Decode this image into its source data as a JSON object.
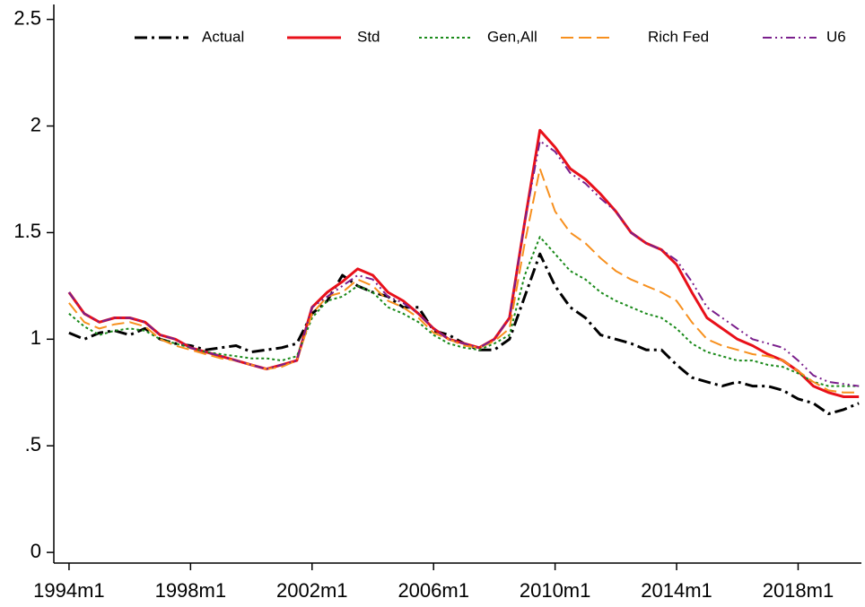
{
  "chart_data": {
    "type": "line",
    "x": [
      "1994m1",
      "1994m7",
      "1995m1",
      "1995m7",
      "1996m1",
      "1996m7",
      "1997m1",
      "1997m7",
      "1998m1",
      "1998m7",
      "1999m1",
      "1999m7",
      "2000m1",
      "2000m7",
      "2001m1",
      "2001m7",
      "2002m1",
      "2002m7",
      "2003m1",
      "2003m7",
      "2004m1",
      "2004m7",
      "2005m1",
      "2005m7",
      "2006m1",
      "2006m7",
      "2007m1",
      "2007m7",
      "2008m1",
      "2008m7",
      "2009m1",
      "2009m7",
      "2010m1",
      "2010m7",
      "2011m1",
      "2011m7",
      "2012m1",
      "2012m7",
      "2013m1",
      "2013m7",
      "2014m1",
      "2014m7",
      "2015m1",
      "2015m7",
      "2016m1",
      "2016m7",
      "2017m1",
      "2017m7",
      "2018m1",
      "2018m7",
      "2019m1",
      "2019m7",
      "2020m1"
    ],
    "series": [
      {
        "name": "Actual",
        "color": "#000000",
        "dash": "14 5 3 5",
        "width": 3,
        "values": [
          1.03,
          1.0,
          1.03,
          1.04,
          1.02,
          1.05,
          1.0,
          0.98,
          0.97,
          0.95,
          0.96,
          0.97,
          0.94,
          0.95,
          0.96,
          0.98,
          1.12,
          1.18,
          1.3,
          1.25,
          1.22,
          1.2,
          1.15,
          1.15,
          1.04,
          1.02,
          0.98,
          0.95,
          0.95,
          1.0,
          1.2,
          1.4,
          1.25,
          1.15,
          1.1,
          1.02,
          1.0,
          0.98,
          0.95,
          0.95,
          0.88,
          0.82,
          0.8,
          0.78,
          0.8,
          0.78,
          0.78,
          0.76,
          0.72,
          0.7,
          0.65,
          0.67,
          0.7
        ]
      },
      {
        "name": "Std",
        "color": "#e8101a",
        "dash": "none",
        "width": 3,
        "values": [
          1.22,
          1.12,
          1.08,
          1.1,
          1.1,
          1.08,
          1.02,
          1.0,
          0.96,
          0.94,
          0.92,
          0.9,
          0.88,
          0.86,
          0.88,
          0.9,
          1.15,
          1.22,
          1.27,
          1.33,
          1.3,
          1.22,
          1.18,
          1.12,
          1.05,
          1.0,
          0.98,
          0.96,
          1.0,
          1.1,
          1.55,
          1.98,
          1.9,
          1.8,
          1.75,
          1.68,
          1.6,
          1.5,
          1.45,
          1.42,
          1.35,
          1.22,
          1.1,
          1.05,
          1.0,
          0.97,
          0.93,
          0.9,
          0.85,
          0.78,
          0.75,
          0.73,
          0.73
        ]
      },
      {
        "name": "Gen,All",
        "color": "#1a8a1a",
        "dash": "3 3",
        "width": 2,
        "values": [
          1.12,
          1.06,
          1.02,
          1.04,
          1.05,
          1.04,
          1.0,
          0.98,
          0.96,
          0.94,
          0.93,
          0.92,
          0.91,
          0.91,
          0.9,
          0.92,
          1.1,
          1.18,
          1.2,
          1.25,
          1.22,
          1.15,
          1.12,
          1.08,
          1.02,
          0.98,
          0.96,
          0.95,
          0.98,
          1.02,
          1.3,
          1.48,
          1.4,
          1.32,
          1.28,
          1.22,
          1.18,
          1.15,
          1.12,
          1.1,
          1.05,
          0.98,
          0.94,
          0.92,
          0.9,
          0.9,
          0.88,
          0.87,
          0.84,
          0.8,
          0.78,
          0.78,
          0.78
        ]
      },
      {
        "name": "Rich Fed",
        "color": "#f7901e",
        "dash": "14 6",
        "width": 2,
        "values": [
          1.17,
          1.08,
          1.05,
          1.07,
          1.08,
          1.06,
          1.0,
          0.97,
          0.95,
          0.93,
          0.91,
          0.9,
          0.88,
          0.86,
          0.87,
          0.9,
          1.12,
          1.2,
          1.22,
          1.28,
          1.25,
          1.18,
          1.15,
          1.1,
          1.03,
          1.0,
          0.97,
          0.96,
          0.99,
          1.05,
          1.45,
          1.8,
          1.6,
          1.5,
          1.45,
          1.38,
          1.32,
          1.28,
          1.25,
          1.22,
          1.18,
          1.08,
          1.0,
          0.97,
          0.95,
          0.93,
          0.92,
          0.9,
          0.85,
          0.8,
          0.76,
          0.75,
          0.75
        ]
      },
      {
        "name": "U6",
        "color": "#7a1f8c",
        "dash": "10 4 2 4 2 4",
        "width": 2,
        "values": [
          1.22,
          1.12,
          1.08,
          1.1,
          1.1,
          1.08,
          1.02,
          1.0,
          0.96,
          0.94,
          0.92,
          0.9,
          0.88,
          0.86,
          0.88,
          0.9,
          1.15,
          1.2,
          1.25,
          1.3,
          1.28,
          1.2,
          1.17,
          1.12,
          1.05,
          1.0,
          0.98,
          0.96,
          1.0,
          1.1,
          1.55,
          1.93,
          1.88,
          1.78,
          1.73,
          1.66,
          1.6,
          1.5,
          1.45,
          1.42,
          1.37,
          1.27,
          1.15,
          1.1,
          1.05,
          1.0,
          0.98,
          0.96,
          0.9,
          0.83,
          0.8,
          0.79,
          0.78
        ]
      }
    ],
    "xlim": [
      "1993m7",
      "2020m2"
    ],
    "xticks": [
      "1994m1",
      "1998m1",
      "2002m1",
      "2006m1",
      "2010m1",
      "2014m1",
      "2018m1"
    ],
    "ylim": [
      -0.05,
      2.57
    ],
    "yticks": [
      0,
      {
        "value": 0.5,
        "label": ".5"
      },
      1,
      1.5,
      2,
      2.5
    ],
    "grid": false,
    "legend": "top"
  }
}
